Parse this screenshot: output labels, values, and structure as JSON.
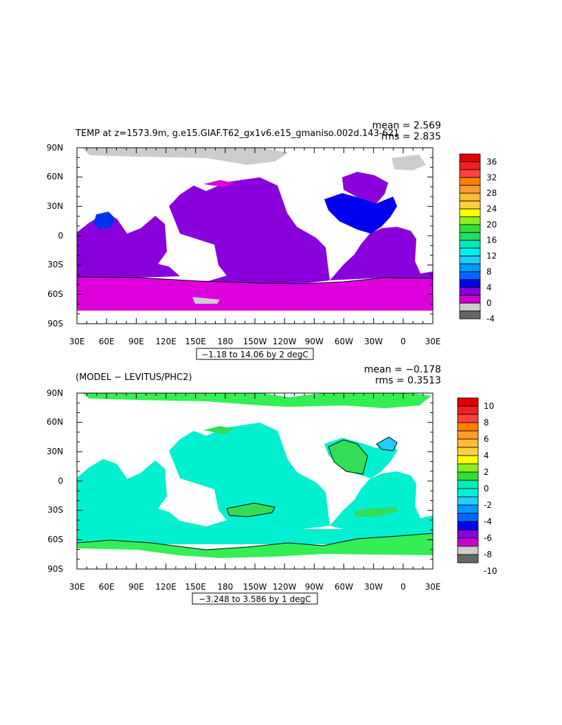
{
  "panels": [
    {
      "id": "top",
      "title": "TEMP at z=1573.9m, g.e15.GIAF.T62_gx1v6.e15_gmaniso.002d.143-621",
      "stats": {
        "mean": "mean = 2.569",
        "rms": "rms = 2.835"
      },
      "range_label": "−1.18 to 14.06 by 2 degC",
      "lat_labels": [
        "90N",
        "60N",
        "30N",
        "0",
        "30S",
        "60S",
        "90S"
      ],
      "lon_labels": [
        "30E",
        "60E",
        "90E",
        "120E",
        "150E",
        "180",
        "150W",
        "120W",
        "90W",
        "60W",
        "30W",
        "0",
        "30E"
      ],
      "colorbar": {
        "labels": [
          "36",
          "32",
          "28",
          "24",
          "20",
          "16",
          "12",
          "8",
          "4",
          "0",
          "-4"
        ],
        "colors": [
          "#e00000",
          "#f02020",
          "#ff4040",
          "#ff8000",
          "#ff9933",
          "#ffbb33",
          "#ffd040",
          "#ffff00",
          "#88ee22",
          "#33dd33",
          "#22dd66",
          "#00e8c0",
          "#00eeee",
          "#22ccff",
          "#0099ff",
          "#0066ff",
          "#0000ee",
          "#8800dd",
          "#cc00cc",
          "#cccccc",
          "#666666"
        ]
      }
    },
    {
      "id": "bottom",
      "title": "(MODEL − LEVITUS/PHC2)",
      "stats": {
        "mean": "mean = −0.178",
        "rms": "rms = 0.3513"
      },
      "range_label": "−3.248 to 3.586 by 1 degC",
      "lat_labels": [
        "90N",
        "60N",
        "30N",
        "0",
        "30S",
        "60S",
        "90S"
      ],
      "lon_labels": [
        "30E",
        "60E",
        "90E",
        "120E",
        "150E",
        "180",
        "150W",
        "120W",
        "90W",
        "60W",
        "30W",
        "0",
        "30E"
      ],
      "colorbar": {
        "labels": [
          "10",
          "8",
          "6",
          "4",
          "2",
          "0",
          "-2",
          "-4",
          "-6",
          "-8",
          "-10"
        ],
        "colors": [
          "#e00000",
          "#f02020",
          "#ff4040",
          "#ff8000",
          "#ff9933",
          "#ffbb33",
          "#ffd040",
          "#ffff00",
          "#88ee22",
          "#33dd33",
          "#00eebb",
          "#00f0d8",
          "#22ccff",
          "#0099ff",
          "#0066ff",
          "#0000ee",
          "#8800dd",
          "#cc00cc",
          "#cccccc",
          "#666666"
        ]
      }
    }
  ],
  "fields": {
    "top": {
      "colors": {
        "south_band": "#dd00dd",
        "ocean": "#8a00dd",
        "north_atlantic": "#0000ee",
        "sea_ice": "#cccccc",
        "arabian_sea": "#0033ee"
      }
    },
    "bottom": {
      "colors": {
        "ocean": "#00f0d0",
        "arctic": "#33ee55",
        "southern_band": "#33ee55",
        "atlantic_patch": "#33dd55",
        "cold_spot": "#22ccff"
      }
    }
  }
}
